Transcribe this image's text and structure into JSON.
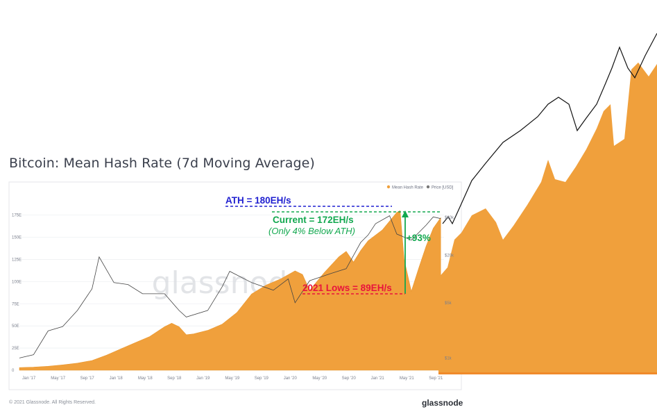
{
  "title": "Bitcoin: Mean Hash Rate (7d Moving Average)",
  "footer": {
    "copyright": "© 2021 Glassnode. All Rights Reserved.",
    "brand": "glassnode",
    "watermark": "glassnode"
  },
  "colors": {
    "hash_rate": "#f0a03c",
    "price": "#444444",
    "ath": "#1f1fd0",
    "current": "#12a84f",
    "lows": "#e8133c"
  },
  "chart_data": {
    "type": "area",
    "title": "Bitcoin: Mean Hash Rate (7d Moving Average)",
    "x_ticks": [
      "Jan '17",
      "May '17",
      "Sep '17",
      "Jan '18",
      "May '18",
      "Sep '18",
      "Jan '19",
      "May '19",
      "Sep '19",
      "Jan '20",
      "May '20",
      "Sep '20",
      "Jan '21",
      "May '21",
      "Sep '21"
    ],
    "y_ticks_left": [
      "0",
      "25E",
      "50E",
      "75E",
      "100E",
      "125E",
      "150E",
      "175E"
    ],
    "y_ticks_right": [
      "$60k",
      "$20k",
      "$5k",
      "$1k"
    ],
    "ylim_hash": [
      0,
      188
    ],
    "legend": {
      "position": "top-right",
      "items": [
        "Mean Hash Rate",
        "Price [USD]"
      ]
    },
    "series": [
      {
        "name": "Mean Hash Rate",
        "unit": "EH/s",
        "points": [
          [
            "2017-01",
            3
          ],
          [
            "2017-03",
            3.5
          ],
          [
            "2017-05",
            4.5
          ],
          [
            "2017-07",
            6
          ],
          [
            "2017-09",
            8
          ],
          [
            "2017-11",
            11
          ],
          [
            "2018-01",
            17
          ],
          [
            "2018-03",
            24
          ],
          [
            "2018-05",
            31
          ],
          [
            "2018-07",
            38
          ],
          [
            "2018-09",
            49
          ],
          [
            "2018-10",
            53
          ],
          [
            "2018-11",
            49
          ],
          [
            "2018-12",
            40
          ],
          [
            "2019-01",
            41
          ],
          [
            "2019-03",
            45
          ],
          [
            "2019-05",
            52
          ],
          [
            "2019-07",
            65
          ],
          [
            "2019-09",
            86
          ],
          [
            "2019-11",
            96
          ],
          [
            "2020-01",
            103
          ],
          [
            "2020-03",
            112
          ],
          [
            "2020-04",
            108
          ],
          [
            "2020-05",
            90
          ],
          [
            "2020-07",
            110
          ],
          [
            "2020-09",
            128
          ],
          [
            "2020-10",
            134
          ],
          [
            "2020-11",
            122
          ],
          [
            "2020-12",
            135
          ],
          [
            "2021-01",
            146
          ],
          [
            "2021-03",
            158
          ],
          [
            "2021-05",
            178
          ],
          [
            "2021-05-15",
            180
          ],
          [
            "2021-06",
            125
          ],
          [
            "2021-07",
            89
          ],
          [
            "2021-08",
            115
          ],
          [
            "2021-09",
            140
          ],
          [
            "2021-10",
            160
          ],
          [
            "2021-11",
            172
          ]
        ]
      },
      {
        "name": "Price [USD]",
        "unit": "USD",
        "points": [
          [
            "2017-01",
            1000
          ],
          [
            "2017-03",
            1100
          ],
          [
            "2017-05",
            2200
          ],
          [
            "2017-07",
            2500
          ],
          [
            "2017-09",
            4000
          ],
          [
            "2017-11",
            7500
          ],
          [
            "2017-12",
            19000
          ],
          [
            "2018-02",
            9000
          ],
          [
            "2018-04",
            8500
          ],
          [
            "2018-06",
            6500
          ],
          [
            "2018-09",
            6500
          ],
          [
            "2018-11",
            4000
          ],
          [
            "2018-12",
            3300
          ],
          [
            "2019-03",
            4000
          ],
          [
            "2019-05",
            8000
          ],
          [
            "2019-06",
            12500
          ],
          [
            "2019-09",
            9000
          ],
          [
            "2019-12",
            7200
          ],
          [
            "2020-02",
            10000
          ],
          [
            "2020-03",
            5000
          ],
          [
            "2020-05",
            9500
          ],
          [
            "2020-08",
            11800
          ],
          [
            "2020-10",
            13500
          ],
          [
            "2020-12",
            29000
          ],
          [
            "2021-01",
            36000
          ],
          [
            "2021-02",
            50000
          ],
          [
            "2021-04",
            63000
          ],
          [
            "2021-05",
            37000
          ],
          [
            "2021-07",
            31000
          ],
          [
            "2021-09",
            48000
          ],
          [
            "2021-10",
            61000
          ],
          [
            "2021-11",
            58000
          ]
        ]
      }
    ],
    "annotations": {
      "ath": "ATH = 180EH/s",
      "current": "Current = 172EH/s",
      "current_note": "(Only 4% Below ATH)",
      "change": "+93%",
      "lows": "2021 Lows = 89EH/s"
    }
  }
}
